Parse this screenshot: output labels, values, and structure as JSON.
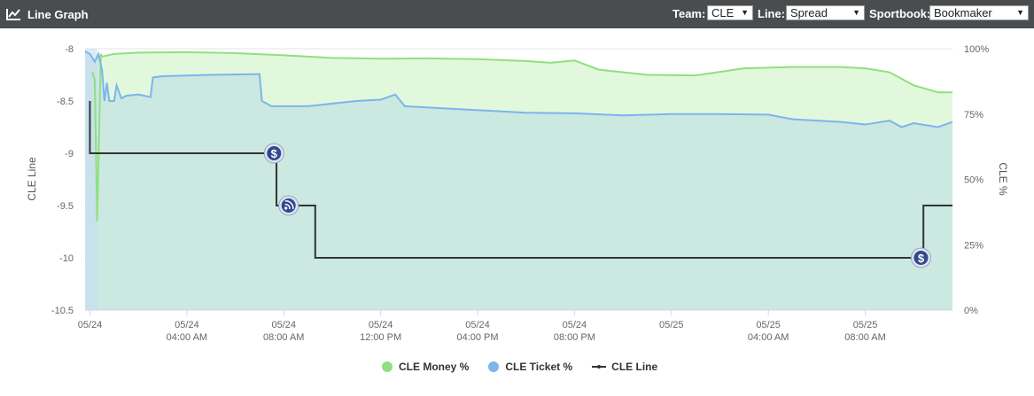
{
  "header": {
    "title": "Line Graph",
    "team_label": "Team:",
    "team_value": "CLE",
    "line_label": "Line:",
    "line_value": "Spread",
    "sportsbook_label": "Sportbook:",
    "sportsbook_value": "Bookmaker",
    "icons": {
      "title_icon": "line-chart-icon",
      "dropdown": "caret-down-icon"
    }
  },
  "chart_data": {
    "type": "line",
    "ylabel_left": "CLE Line",
    "ylabel_right": "CLE %",
    "y_left_range": [
      -10.5,
      -8
    ],
    "y_left_ticks": [
      "-8",
      "-8.5",
      "-9",
      "-9.5",
      "-10",
      "-10.5"
    ],
    "y_right_range": [
      0,
      100
    ],
    "y_right_ticks": [
      "100%",
      "75%",
      "50%",
      "25%",
      "0%"
    ],
    "x_unit": "hours since 05/24 00:00",
    "x_range": [
      -0.2,
      35.6
    ],
    "x_ticks": [
      {
        "x": 0,
        "line1": "05/24",
        "line2": ""
      },
      {
        "x": 4,
        "line1": "05/24",
        "line2": "04:00 AM"
      },
      {
        "x": 8,
        "line1": "05/24",
        "line2": "08:00 AM"
      },
      {
        "x": 12,
        "line1": "05/24",
        "line2": "12:00 PM"
      },
      {
        "x": 16,
        "line1": "05/24",
        "line2": "04:00 PM"
      },
      {
        "x": 20,
        "line1": "05/24",
        "line2": "08:00 PM"
      },
      {
        "x": 24,
        "line1": "05/25",
        "line2": ""
      },
      {
        "x": 28,
        "line1": "05/25",
        "line2": "04:00 AM"
      },
      {
        "x": 32,
        "line1": "05/25",
        "line2": "08:00 AM"
      }
    ],
    "grid": true,
    "legend_position": "bottom-center",
    "series": [
      {
        "name": "CLE Money %",
        "color": "#90e07f",
        "fill": "#e2f8dd",
        "axis": "right",
        "points": [
          [
            0.1,
            91
          ],
          [
            0.2,
            88
          ],
          [
            0.3,
            34
          ],
          [
            0.45,
            98
          ],
          [
            0.5,
            97
          ],
          [
            1,
            98
          ],
          [
            2,
            98.5
          ],
          [
            4,
            98.7
          ],
          [
            6,
            98.3
          ],
          [
            8,
            97.5
          ],
          [
            10,
            96.5
          ],
          [
            12,
            96.2
          ],
          [
            14,
            96.3
          ],
          [
            16,
            96
          ],
          [
            18,
            95.3
          ],
          [
            19,
            94.6
          ],
          [
            20,
            95.5
          ],
          [
            21,
            92
          ],
          [
            23,
            90
          ],
          [
            25,
            89.8
          ],
          [
            27,
            92.5
          ],
          [
            29,
            93
          ],
          [
            31,
            93
          ],
          [
            32,
            92.5
          ],
          [
            33,
            91
          ],
          [
            34,
            86
          ],
          [
            35,
            83.3
          ],
          [
            35.6,
            83.3
          ]
        ]
      },
      {
        "name": "CLE Ticket %",
        "color": "#7cb5ec",
        "fill": "#c9e7e0",
        "axis": "right",
        "points": [
          [
            -0.2,
            99
          ],
          [
            0,
            98
          ],
          [
            0.2,
            95
          ],
          [
            0.35,
            98
          ],
          [
            0.5,
            92
          ],
          [
            0.6,
            80
          ],
          [
            0.7,
            87
          ],
          [
            0.8,
            80
          ],
          [
            1,
            80
          ],
          [
            1.1,
            86
          ],
          [
            1.3,
            81
          ],
          [
            1.5,
            82
          ],
          [
            2,
            82.5
          ],
          [
            2.5,
            81.5
          ],
          [
            2.6,
            89
          ],
          [
            3,
            89.5
          ],
          [
            5,
            90
          ],
          [
            7,
            90.3
          ],
          [
            7.1,
            80
          ],
          [
            7.5,
            78
          ],
          [
            9,
            78
          ],
          [
            11,
            80
          ],
          [
            12,
            80.5
          ],
          [
            12.6,
            82.5
          ],
          [
            13,
            78
          ],
          [
            15,
            77
          ],
          [
            17,
            76
          ],
          [
            18,
            75.5
          ],
          [
            20,
            75.3
          ],
          [
            22,
            74.5
          ],
          [
            24,
            75
          ],
          [
            26,
            75
          ],
          [
            28,
            74.8
          ],
          [
            29,
            73
          ],
          [
            31,
            72
          ],
          [
            32,
            71
          ],
          [
            33,
            72.5
          ],
          [
            33.5,
            70
          ],
          [
            34,
            71.5
          ],
          [
            35,
            70
          ],
          [
            35.6,
            72
          ]
        ]
      },
      {
        "name": "CLE Line",
        "color": "#333333",
        "axis": "left",
        "points": [
          [
            0,
            -8.5
          ],
          [
            0,
            -9
          ],
          [
            7.7,
            -9
          ],
          [
            7.7,
            -9.5
          ],
          [
            9.3,
            -9.5
          ],
          [
            9.3,
            -10
          ],
          [
            34.4,
            -10
          ],
          [
            34.4,
            -9.5
          ],
          [
            35.6,
            -9.5
          ]
        ]
      }
    ],
    "markers": [
      {
        "x": 7.6,
        "y": -9,
        "icon": "dollar-icon",
        "label": "$"
      },
      {
        "x": 8.2,
        "y": -9.5,
        "icon": "rss-icon",
        "label": ""
      },
      {
        "x": 34.3,
        "y": -10,
        "icon": "dollar-icon",
        "label": "$"
      }
    ]
  }
}
